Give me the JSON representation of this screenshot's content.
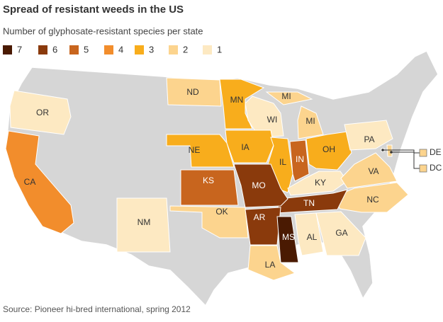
{
  "title": "Spread of resistant weeds in the US",
  "subtitle": "Number of glyphosate-resistant species per state",
  "legend": [
    {
      "value": 7,
      "color": "#4a1a02"
    },
    {
      "value": 6,
      "color": "#8a3a0c"
    },
    {
      "value": 5,
      "color": "#c8651e"
    },
    {
      "value": 4,
      "color": "#f28d2c"
    },
    {
      "value": 3,
      "color": "#f8ad1c"
    },
    {
      "value": 2,
      "color": "#fcd48e"
    },
    {
      "value": 1,
      "color": "#fde9c2"
    }
  ],
  "states": [
    {
      "label": "OR",
      "value": 1
    },
    {
      "label": "CA",
      "value": 4
    },
    {
      "label": "ND",
      "value": 2
    },
    {
      "label": "MN",
      "value": 3
    },
    {
      "label": "WI",
      "value": 1
    },
    {
      "label": "MI",
      "value": 2
    },
    {
      "label": "NE",
      "value": 3
    },
    {
      "label": "IA",
      "value": 3
    },
    {
      "label": "IL",
      "value": 3
    },
    {
      "label": "IN",
      "value": 5
    },
    {
      "label": "OH",
      "value": 3
    },
    {
      "label": "PA",
      "value": 1
    },
    {
      "label": "DE",
      "value": 2
    },
    {
      "label": "DC",
      "value": 2
    },
    {
      "label": "KY",
      "value": 1
    },
    {
      "label": "VA",
      "value": 2
    },
    {
      "label": "NC",
      "value": 2
    },
    {
      "label": "TN",
      "value": 6
    },
    {
      "label": "KS",
      "value": 5
    },
    {
      "label": "MO",
      "value": 6
    },
    {
      "label": "OK",
      "value": 2
    },
    {
      "label": "AR",
      "value": 6
    },
    {
      "label": "NM",
      "value": 1
    },
    {
      "label": "MS",
      "value": 7
    },
    {
      "label": "AL",
      "value": 1
    },
    {
      "label": "GA",
      "value": 1
    },
    {
      "label": "LA",
      "value": 2
    }
  ],
  "source": "Source: Pioneer hi-bred international, spring 2012"
}
